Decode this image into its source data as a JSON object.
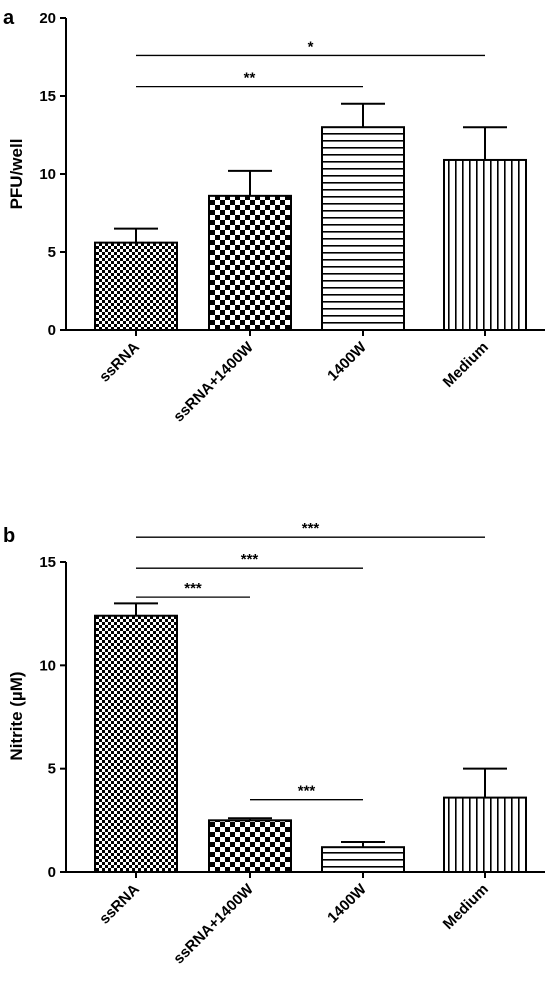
{
  "chart_data": [
    {
      "type": "bar",
      "panel_label": "a",
      "ylabel": "PFU/well",
      "xlabel": "",
      "ylim": [
        0,
        20
      ],
      "yticks": [
        0,
        5,
        10,
        15,
        20
      ],
      "categories": [
        "ssRNA",
        "ssRNA+1400W",
        "1400W",
        "Medium"
      ],
      "values": [
        5.6,
        8.6,
        13.0,
        10.9
      ],
      "errors": [
        0.9,
        1.6,
        1.5,
        2.1
      ],
      "patterns": [
        "fine-checker",
        "checker",
        "horizontal-lines",
        "vertical-lines"
      ],
      "significance": [
        {
          "from": 0,
          "to": 3,
          "label": "*",
          "y": 17.6
        },
        {
          "from": 0,
          "to": 2,
          "label": "**",
          "y": 15.6
        }
      ]
    },
    {
      "type": "bar",
      "panel_label": "b",
      "ylabel": "Nitrite (µM)",
      "xlabel": "",
      "ylim": [
        0,
        15
      ],
      "yticks": [
        0,
        5,
        10,
        15
      ],
      "categories": [
        "ssRNA",
        "ssRNA+1400W",
        "1400W",
        "Medium"
      ],
      "values": [
        12.4,
        2.5,
        1.2,
        3.6
      ],
      "errors": [
        0.6,
        0.1,
        0.25,
        1.4
      ],
      "patterns": [
        "fine-checker",
        "checker",
        "horizontal-lines",
        "vertical-lines"
      ],
      "significance": [
        {
          "from": 0,
          "to": 3,
          "label": "***",
          "y": 16.2
        },
        {
          "from": 0,
          "to": 2,
          "label": "***",
          "y": 14.7
        },
        {
          "from": 0,
          "to": 1,
          "label": "***",
          "y": 13.3
        },
        {
          "from": 1,
          "to": 2,
          "label": "***",
          "y": 3.5
        }
      ]
    }
  ]
}
